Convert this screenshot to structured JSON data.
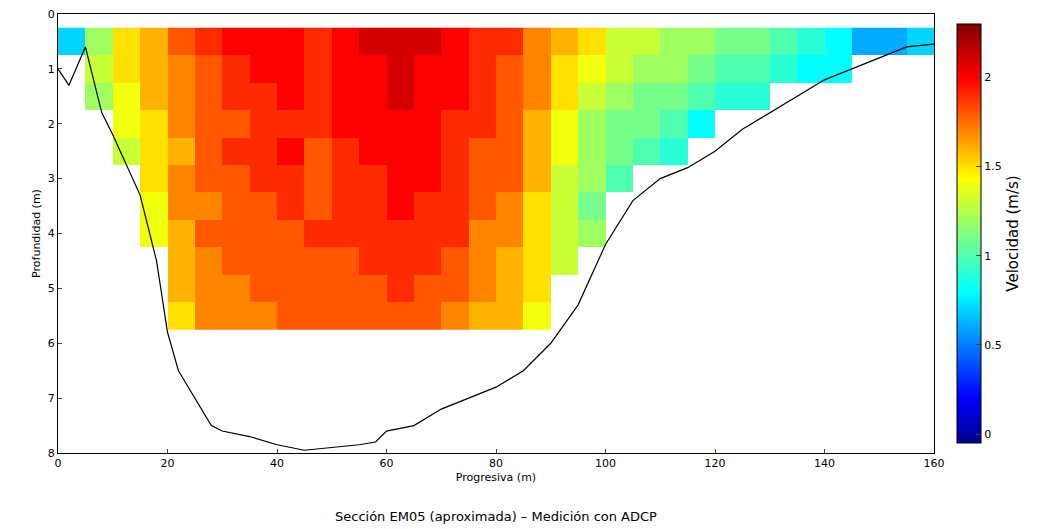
{
  "chart_data": {
    "type": "heatmap",
    "title": "Sección EM05 (aproximada) – Medición con ADCP",
    "x_label": "Progresiva (m)",
    "y_label": "Profundidad (m)",
    "xlim": [
      0,
      160
    ],
    "xticks": [
      0,
      20,
      40,
      60,
      80,
      100,
      120,
      140,
      160
    ],
    "ylim": [
      8,
      0
    ],
    "yticks": [
      0,
      1,
      2,
      3,
      4,
      5,
      6,
      7,
      8
    ],
    "grid": false,
    "heatmap": {
      "x": [
        2.5,
        7.5,
        12.5,
        17.5,
        22.5,
        27.5,
        32.5,
        37.5,
        42.5,
        47.5,
        52.5,
        57.5,
        62.5,
        67.5,
        72.5,
        77.5,
        82.5,
        87.5,
        92.5,
        97.5,
        102.5,
        107.5,
        112.5,
        117.5,
        122.5,
        127.5,
        132.5,
        137.5,
        142.5,
        147.5,
        152.5,
        157.5
      ],
      "y": [
        0.5,
        1.0,
        1.5,
        2.0,
        2.5,
        3.0,
        3.5,
        4.0,
        4.5,
        5.0,
        5.5
      ],
      "cells_by_x": [
        [
          0.7,
          null,
          null,
          null,
          null,
          null,
          null,
          null,
          null,
          null,
          null
        ],
        [
          1.2,
          1.3,
          1.2,
          null,
          null,
          null,
          null,
          null,
          null,
          null,
          null
        ],
        [
          1.5,
          1.5,
          1.4,
          1.4,
          1.3,
          null,
          null,
          null,
          null,
          null,
          null
        ],
        [
          1.6,
          1.6,
          1.6,
          1.5,
          1.5,
          1.5,
          1.4,
          1.4,
          null,
          null,
          null
        ],
        [
          1.8,
          1.7,
          1.7,
          1.7,
          1.6,
          1.7,
          1.7,
          1.6,
          1.6,
          1.6,
          1.5
        ],
        [
          1.9,
          1.8,
          1.8,
          1.8,
          1.8,
          1.8,
          1.7,
          1.8,
          1.7,
          1.7,
          1.7
        ],
        [
          2.0,
          1.9,
          1.9,
          1.8,
          1.9,
          1.8,
          1.8,
          1.8,
          1.8,
          1.7,
          1.7
        ],
        [
          2.0,
          2.0,
          1.9,
          1.9,
          1.9,
          1.9,
          1.8,
          1.8,
          1.8,
          1.8,
          1.7
        ],
        [
          2.0,
          2.0,
          2.0,
          1.9,
          2.0,
          1.9,
          1.9,
          1.8,
          1.8,
          1.8,
          1.8
        ],
        [
          1.9,
          1.9,
          1.9,
          1.9,
          1.8,
          1.8,
          1.8,
          1.9,
          1.8,
          1.8,
          1.8
        ],
        [
          2.0,
          2.0,
          2.0,
          2.0,
          1.9,
          1.9,
          1.9,
          1.9,
          1.8,
          1.8,
          1.8
        ],
        [
          2.1,
          2.0,
          2.0,
          2.0,
          2.0,
          1.9,
          1.9,
          1.9,
          1.9,
          1.8,
          1.8
        ],
        [
          2.1,
          2.1,
          2.1,
          2.0,
          2.0,
          2.0,
          2.0,
          1.9,
          1.9,
          1.9,
          1.8
        ],
        [
          2.1,
          2.0,
          2.0,
          2.0,
          2.0,
          2.0,
          1.9,
          1.9,
          1.9,
          1.8,
          1.8
        ],
        [
          2.0,
          2.0,
          2.0,
          1.9,
          1.9,
          1.9,
          1.9,
          1.9,
          1.8,
          1.8,
          1.7
        ],
        [
          1.9,
          1.9,
          1.9,
          1.9,
          1.8,
          1.8,
          1.8,
          1.7,
          1.7,
          1.7,
          1.6
        ],
        [
          1.9,
          1.8,
          1.8,
          1.8,
          1.8,
          1.8,
          1.7,
          1.7,
          1.6,
          1.6,
          1.6
        ],
        [
          1.7,
          1.7,
          1.7,
          1.6,
          1.6,
          1.6,
          1.5,
          1.5,
          1.5,
          1.5,
          1.4
        ],
        [
          1.6,
          1.5,
          1.5,
          1.4,
          1.4,
          1.3,
          1.3,
          1.3,
          1.3,
          null,
          null
        ],
        [
          1.5,
          1.4,
          1.3,
          1.2,
          1.2,
          1.2,
          1.1,
          1.2,
          null,
          null,
          null
        ],
        [
          1.3,
          1.3,
          1.2,
          1.1,
          1.1,
          1.0,
          null,
          null,
          null,
          null,
          null
        ],
        [
          1.3,
          1.2,
          1.1,
          1.1,
          1.0,
          null,
          null,
          null,
          null,
          null,
          null
        ],
        [
          1.2,
          1.2,
          1.1,
          1.0,
          0.9,
          null,
          null,
          null,
          null,
          null,
          null
        ],
        [
          1.2,
          1.1,
          1.0,
          0.8,
          null,
          null,
          null,
          null,
          null,
          null,
          null
        ],
        [
          1.1,
          1.0,
          0.9,
          null,
          null,
          null,
          null,
          null,
          null,
          null,
          null
        ],
        [
          1.1,
          1.0,
          0.9,
          null,
          null,
          null,
          null,
          null,
          null,
          null,
          null
        ],
        [
          1.0,
          0.9,
          null,
          null,
          null,
          null,
          null,
          null,
          null,
          null,
          null
        ],
        [
          0.9,
          0.8,
          null,
          null,
          null,
          null,
          null,
          null,
          null,
          null,
          null
        ],
        [
          0.8,
          0.8,
          null,
          null,
          null,
          null,
          null,
          null,
          null,
          null,
          null
        ],
        [
          0.6,
          null,
          null,
          null,
          null,
          null,
          null,
          null,
          null,
          null,
          null
        ],
        [
          0.6,
          null,
          null,
          null,
          null,
          null,
          null,
          null,
          null,
          null,
          null
        ],
        [
          0.7,
          null,
          null,
          null,
          null,
          null,
          null,
          null,
          null,
          null,
          null
        ]
      ],
      "colorbar_title": "Velocidad (m/s)",
      "colorbar_range": [
        -0.05,
        2.3
      ],
      "colorbar_ticks": [
        0,
        0.5,
        1,
        1.5,
        2
      ]
    },
    "series": [
      {
        "type": "line",
        "color": "#000000",
        "x": [
          0,
          2,
          5,
          8,
          10,
          15,
          18,
          20,
          22,
          25,
          28,
          30,
          35,
          40,
          45,
          50,
          55,
          58,
          60,
          65,
          70,
          75,
          80,
          85,
          90,
          95,
          100,
          105,
          110,
          115,
          120,
          125,
          130,
          135,
          140,
          145,
          150,
          155,
          160
        ],
        "values": [
          1.0,
          1.3,
          0.6,
          1.8,
          2.2,
          3.3,
          4.5,
          5.8,
          6.5,
          7.0,
          7.5,
          7.6,
          7.7,
          7.85,
          7.95,
          7.9,
          7.85,
          7.8,
          7.6,
          7.5,
          7.2,
          7.0,
          6.8,
          6.5,
          6.0,
          5.3,
          4.2,
          3.4,
          3.0,
          2.8,
          2.5,
          2.1,
          1.8,
          1.5,
          1.2,
          1.0,
          0.8,
          0.6,
          0.55
        ]
      }
    ]
  }
}
